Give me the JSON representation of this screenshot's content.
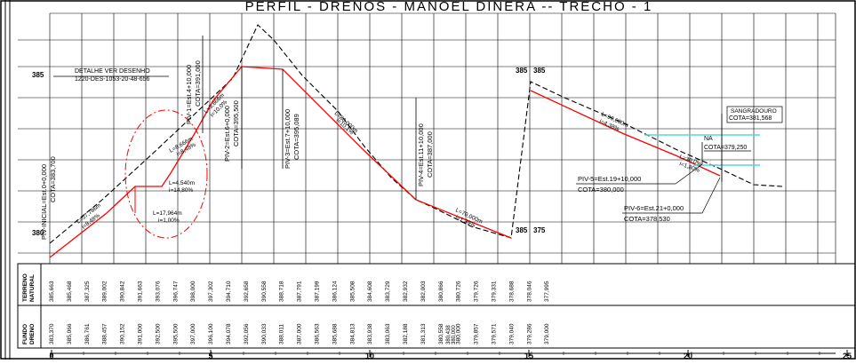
{
  "title": "PERFIL - DRENOS - MANOEL DINERA -- TRECHO - 1",
  "elevation_labels": {
    "top_left": "385",
    "bottom_left": "380",
    "top_right_a": "385",
    "top_right_b": "385",
    "bottom_right_a": "385",
    "bottom_right_b": "375"
  },
  "annotations": {
    "detail_1": "DETALHE VER DESENHO",
    "detail_2": "1220-DES-1053-20-48-656",
    "piv_inicial_1": "PIV-INICIAL=Est.0+0,000",
    "piv_inicial_2": "COTA=383,700",
    "piv1_1": "PIV-1=Est.4+10,000",
    "piv1_2": "COTA=391,000",
    "piv2_1": "PIV-2=Est.6+0,000",
    "piv2_2": "COTA=395,500",
    "piv3_1": "PIV-3=Est.7+10,000",
    "piv3_2": "COTA=395,089",
    "piv4_1": "PIV-4=Est.11+10,000",
    "piv4_2": "COTA=387,000",
    "piv5_1": "PIV-5=Est.19+10,000",
    "piv5_2": "COTA=380,000",
    "piv6_1": "PIV-6=Est.21+0,000",
    "piv6_2": "COTA=378,530",
    "sangradouro_1": "SANGRADOURO",
    "sangradouro_2": "COTA=381,568",
    "na_1": "NA",
    "na_2": "COTA=379,250",
    "seg_a_l": "L=57,786m",
    "seg_a_i": "i=8,48%",
    "seg_b_l": "L=17,964m",
    "seg_b_i": "i=1,00%",
    "seg_c_l": "L=4,540m",
    "seg_c_i": "i=14,80%",
    "seg_d_l": "L=8,666m",
    "seg_d_i": "i=8,48%",
    "seg_e_l": "L=5,866m",
    "seg_e_i": "i=10,0%",
    "seg_f_l": "L=80,000m",
    "seg_f_i": "i=10,1%",
    "seg_g_l": "L=70,000m",
    "seg_g_i": "i=1,39%",
    "seg_h_l": "L=90,000m",
    "seg_h_i": "i=4,38%",
    "seg_i_l": "L=30,0%",
    "seg_i_i": "i=1,80%"
  },
  "row_labels": {
    "terreno_1": "TERRENO",
    "terreno_2": "NATURAL",
    "fundo_1": "FUNDO",
    "fundo_2": "DRENO"
  },
  "terreno_values": [
    "385,663",
    "385,468",
    "387,325",
    "389,002",
    "390,842",
    "391,663",
    "393,076",
    "396,747",
    "398,000",
    "397,302",
    "394,710",
    "392,658",
    "390,558",
    "388,718",
    "387,791",
    "387,199",
    "386,124",
    "385,508",
    "384,608",
    "383,729",
    "382,932",
    "382,003",
    "380,866",
    "380,726",
    "379,726",
    "379,331",
    "378,688",
    "378,046",
    "377,995"
  ],
  "fundo_values": [
    "383,370",
    "385,066",
    "386,761",
    "388,457",
    "390,152",
    "391,000",
    "392,500",
    "395,500",
    "397,000",
    "396,100",
    "394,078",
    "392,056",
    "390,033",
    "388,011",
    "387,000",
    "386,563",
    "385,688",
    "384,813",
    "383,938",
    "383,063",
    "382,188",
    "381,313",
    "380,558",
    "380,000",
    "379,857",
    "379,571",
    "379,040",
    "379,286",
    "379,000"
  ],
  "fundo_stacked_pairs": [
    "380,438",
    "380,000"
  ],
  "x_axis": {
    "ticks": [
      "0",
      "5",
      "10",
      "15",
      "20",
      "25"
    ]
  },
  "colors": {
    "red": "#ff0000",
    "cyan": "#4fd8e0",
    "black": "#000000"
  }
}
